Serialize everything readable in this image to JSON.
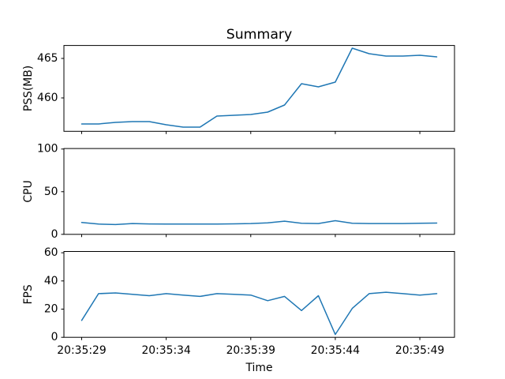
{
  "chart_data": {
    "type": "line",
    "title": "Summary",
    "xlabel": "Time",
    "grid": false,
    "legend": null,
    "background_color": "#ffffff",
    "axis_color": "#000000",
    "line_color": "#1f77b4",
    "x": [
      "20:35:29",
      "20:35:30",
      "20:35:31",
      "20:35:32",
      "20:35:33",
      "20:35:34",
      "20:35:35",
      "20:35:36",
      "20:35:37",
      "20:35:38",
      "20:35:39",
      "20:35:40",
      "20:35:41",
      "20:35:42",
      "20:35:43",
      "20:35:44",
      "20:35:45",
      "20:35:46",
      "20:35:47",
      "20:35:48",
      "20:35:49",
      "20:35:50"
    ],
    "x_tick_indices": [
      0,
      5,
      10,
      15,
      20
    ],
    "x_tick_labels": [
      "20:35:29",
      "20:35:34",
      "20:35:39",
      "20:35:44",
      "20:35:49"
    ],
    "subplots": [
      {
        "id": "pss",
        "ylabel": "PSS(MB)",
        "yticks": [
          460,
          465
        ],
        "ylim": [
          455.77,
          466.64
        ],
        "values": [
          456.7,
          456.7,
          456.9,
          457.0,
          457.0,
          456.6,
          456.3,
          456.3,
          457.7,
          457.8,
          457.9,
          458.2,
          459.1,
          461.8,
          461.4,
          462.0,
          466.3,
          465.6,
          465.3,
          465.3,
          465.4,
          465.2
        ]
      },
      {
        "id": "cpu",
        "ylabel": "CPU",
        "yticks": [
          0,
          50,
          100
        ],
        "ylim": [
          0,
          100.6
        ],
        "values": [
          14,
          12,
          11.5,
          12.7,
          12.2,
          12,
          12,
          12,
          12,
          12.3,
          12.7,
          13.5,
          15.5,
          13,
          12.7,
          16,
          13,
          12.7,
          12.7,
          12.7,
          13,
          13.2
        ]
      },
      {
        "id": "fps",
        "ylabel": "FPS",
        "yticks": [
          0,
          20,
          40,
          60
        ],
        "ylim": [
          0,
          60.9
        ],
        "values": [
          12,
          31,
          31.5,
          30.5,
          29.5,
          31,
          30,
          29,
          31,
          30.5,
          30,
          26,
          29,
          19,
          29.5,
          2,
          20.5,
          31,
          32,
          31,
          30,
          31
        ]
      }
    ]
  }
}
